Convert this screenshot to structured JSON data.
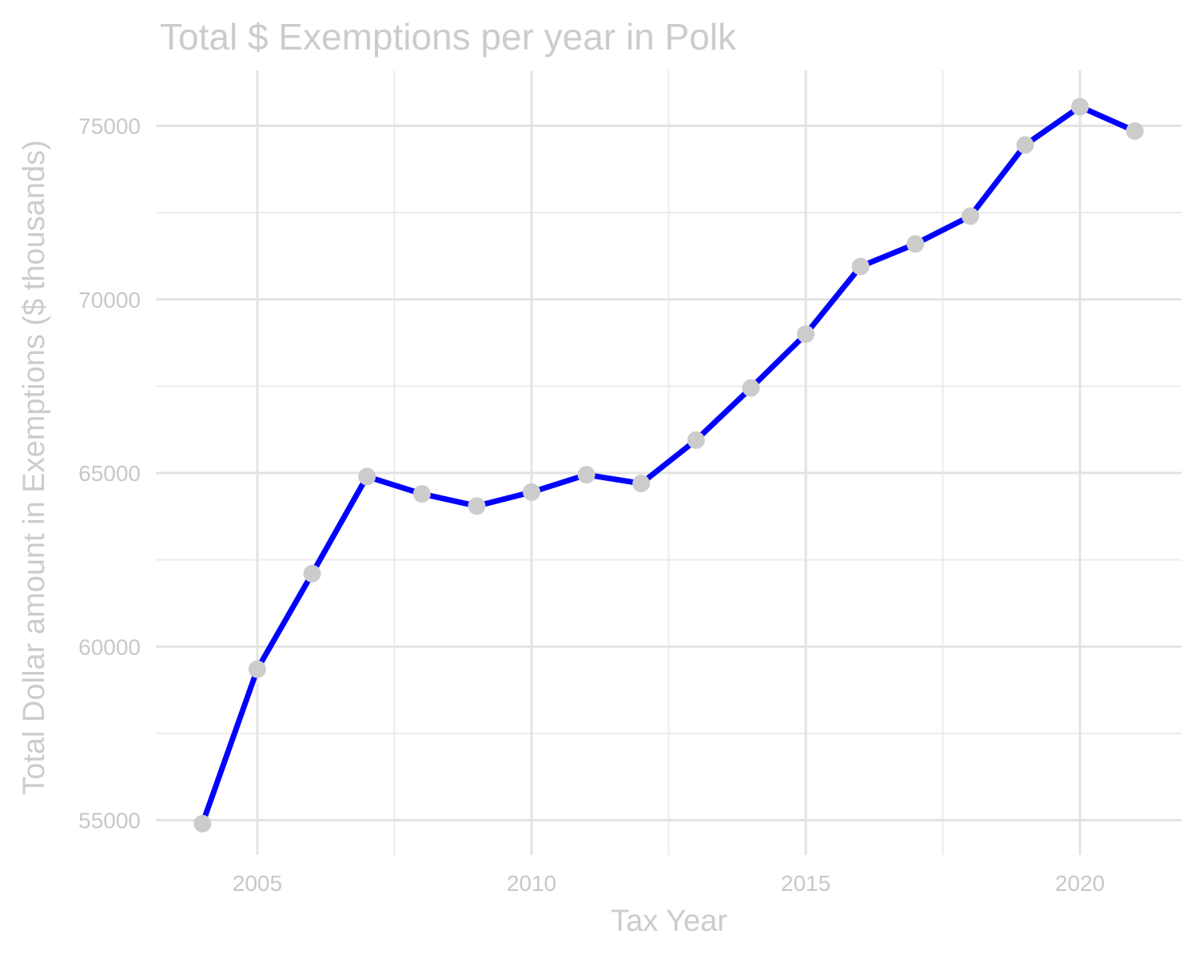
{
  "chart_data": {
    "type": "line",
    "title": "Total $ Exemptions per year in Polk",
    "xlabel": "Tax Year",
    "ylabel": "Total Dollar amount in Exemptions ($ thousands)",
    "x": [
      2004,
      2005,
      2006,
      2007,
      2008,
      2009,
      2010,
      2011,
      2012,
      2013,
      2014,
      2015,
      2016,
      2017,
      2018,
      2019,
      2020,
      2021
    ],
    "series": [
      {
        "values": [
          54900,
          59350,
          62100,
          64900,
          64400,
          64050,
          64450,
          64950,
          64700,
          65950,
          67450,
          69000,
          70950,
          71600,
          72400,
          74450,
          75550,
          74850
        ]
      }
    ],
    "xlim": [
      2003.15,
      2021.85
    ],
    "ylim": [
      54000,
      76600
    ],
    "x_ticks": [
      2005,
      2010,
      2015,
      2020
    ],
    "y_ticks": [
      55000,
      60000,
      65000,
      70000,
      75000
    ],
    "x_minor_ticks": [
      2007.5,
      2012.5,
      2017.5
    ],
    "y_minor_ticks": [
      57500,
      62500,
      67500,
      72500
    ],
    "grid": true,
    "legend": "none",
    "colors": {
      "line": "#0000ff",
      "points": "#cccccc",
      "text": "#cccccc",
      "grid": "#e3e3e3"
    }
  }
}
